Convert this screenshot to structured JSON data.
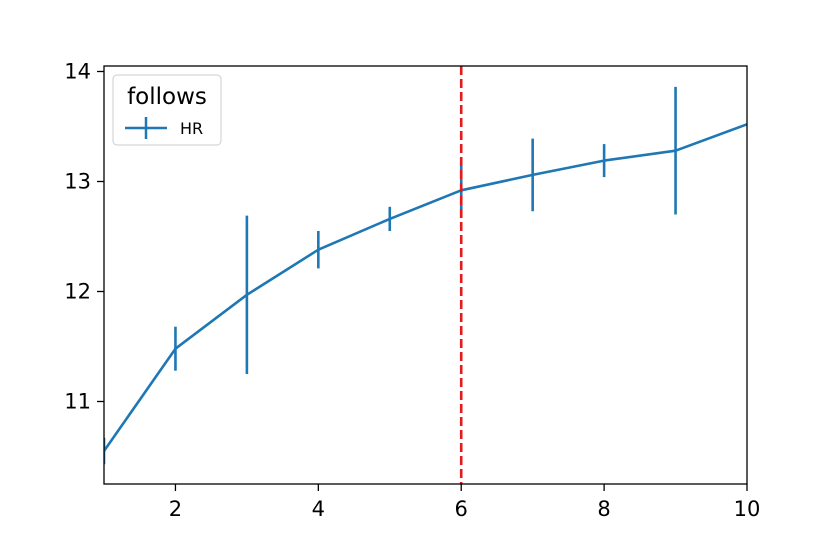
{
  "chart_data": {
    "type": "line",
    "x": [
      1,
      2,
      3,
      4,
      5,
      6,
      7,
      8,
      9,
      10
    ],
    "xlim": [
      1,
      10
    ],
    "ylim": [
      10.25,
      14.05
    ],
    "xticks": [
      2,
      4,
      6,
      8,
      10
    ],
    "yticks": [
      11,
      12,
      13,
      14
    ],
    "series": [
      {
        "name": "HR",
        "color": "#1f77b4",
        "values": [
          10.55,
          11.48,
          11.97,
          12.38,
          12.66,
          12.92,
          13.06,
          13.19,
          13.28,
          13.52
        ],
        "errors": [
          0.12,
          0.2,
          0.72,
          0.17,
          0.11,
          0.25,
          0.33,
          0.15,
          0.58,
          0.0
        ]
      }
    ],
    "reference_line": {
      "x": 6,
      "color": "#e41a1c",
      "style": "dashed"
    },
    "legend": {
      "title": "follows",
      "position": "top-left"
    },
    "grid": false
  }
}
